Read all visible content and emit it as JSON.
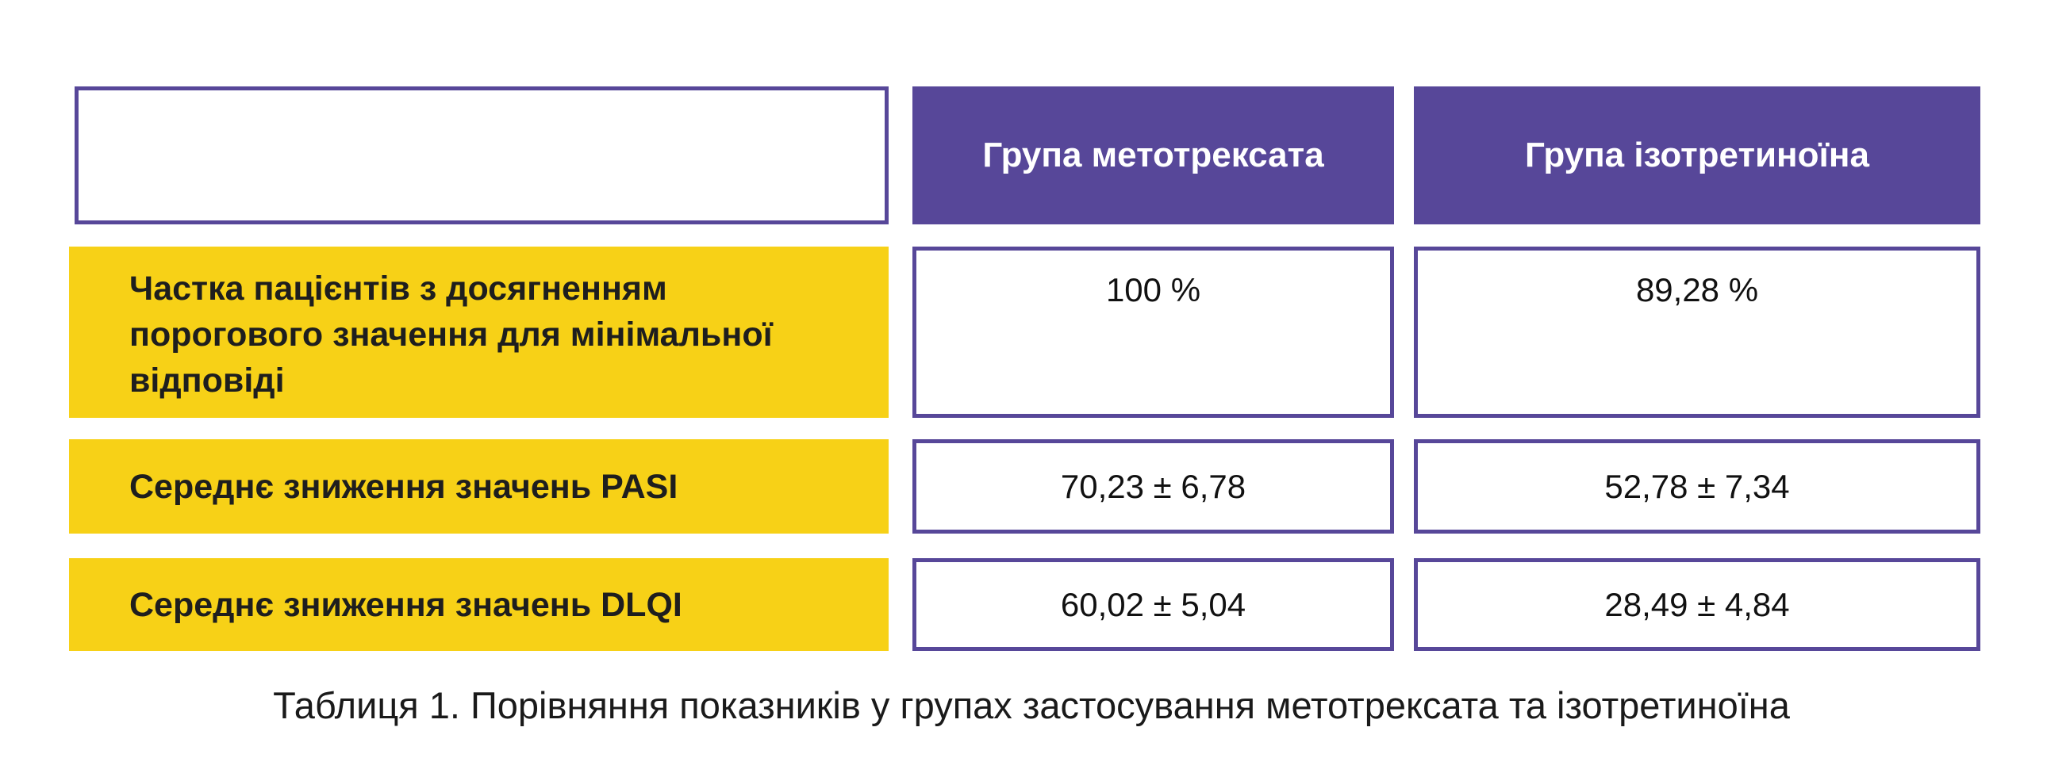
{
  "table": {
    "headers": [
      "",
      "Група метотрексата",
      "Група ізотретиноїна"
    ],
    "rows": [
      {
        "label": "Частка пацієнтів з досягненням порогового значення для мінімальної відповіді",
        "values": [
          "100 %",
          "89,28 %"
        ]
      },
      {
        "label": "Середнє зниження значень PASI",
        "values": [
          "70,23 ± 6,78",
          "52,78 ± 7,34"
        ]
      },
      {
        "label": "Середнє зниження значень DLQI",
        "values": [
          "60,02 ± 5,04",
          "28,49 ± 4,84"
        ]
      }
    ]
  },
  "caption": "Таблиця 1. Порівняння показників у групах застосування метотрексата та ізотретиноїна",
  "colors": {
    "header": "#574799",
    "row_label": "#F7D117",
    "border": "#574799"
  }
}
